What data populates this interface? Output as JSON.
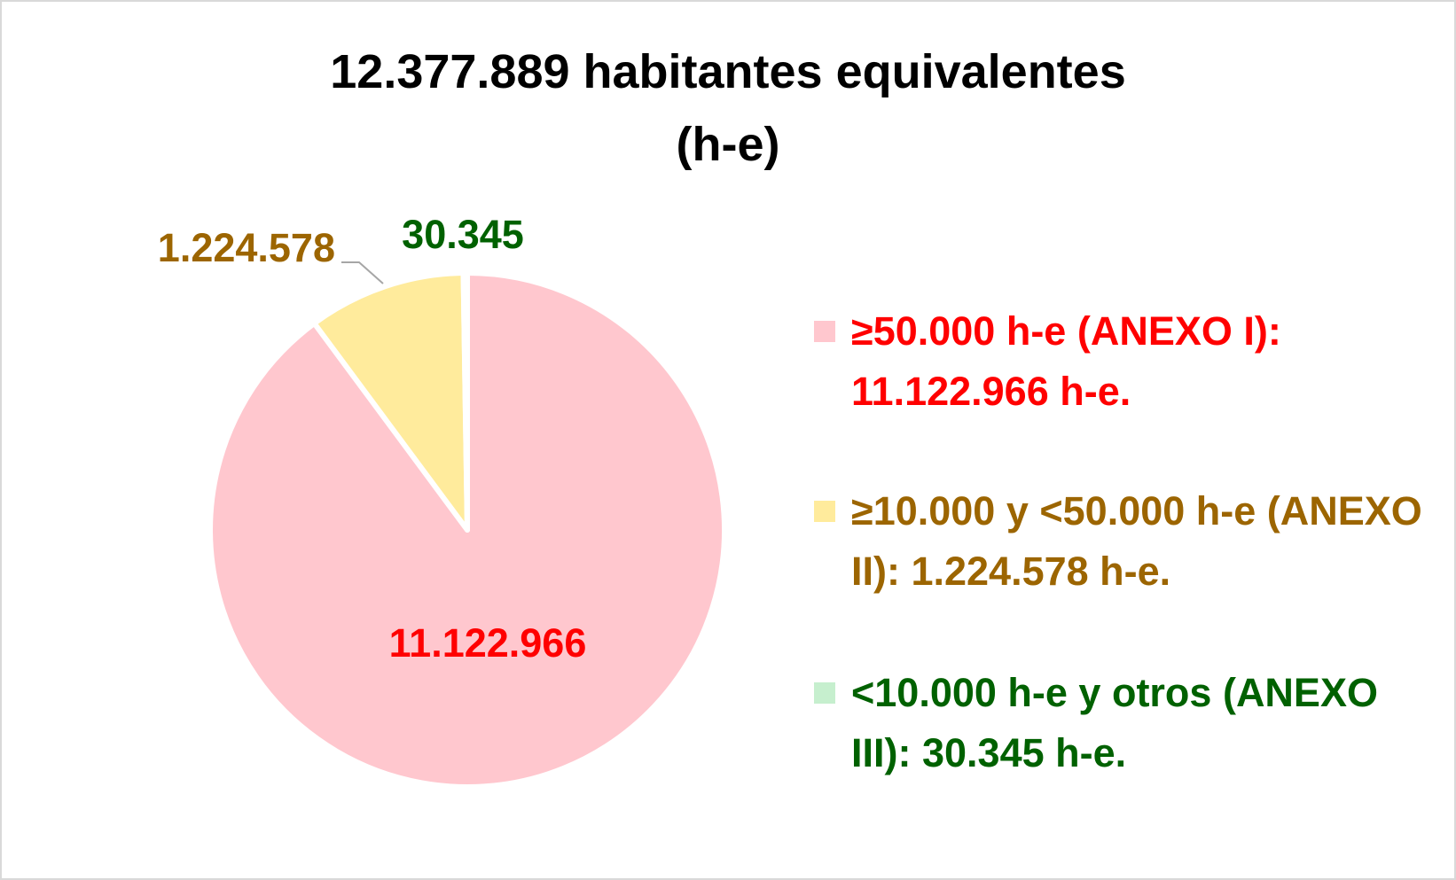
{
  "chart_data": {
    "type": "pie",
    "title_lines": [
      "12.377.889 habitantes equivalentes",
      "(h-e)"
    ],
    "slices": [
      {
        "value": 11122966,
        "label": "11.122.966",
        "legend": "≥50.000 h-e (ANEXO I): 11.122.966 h-e.",
        "color": "#ffc7ce",
        "text_color": "#ff0000"
      },
      {
        "value": 1224578,
        "label": "1.224.578",
        "legend": "≥10.000 y <50.000 h-e (ANEXO  II): 1.224.578 h-e.",
        "color": "#ffeb9c",
        "text_color": "#9c6500"
      },
      {
        "value": 30345,
        "label": "30.345",
        "legend": "<10.000 h-e y otros (ANEXO III): 30.345 h-e.",
        "color": "#c6efce",
        "text_color": "#006100"
      }
    ],
    "legend_position": "right",
    "start_angle": "12 o'clock",
    "direction": "clockwise"
  }
}
